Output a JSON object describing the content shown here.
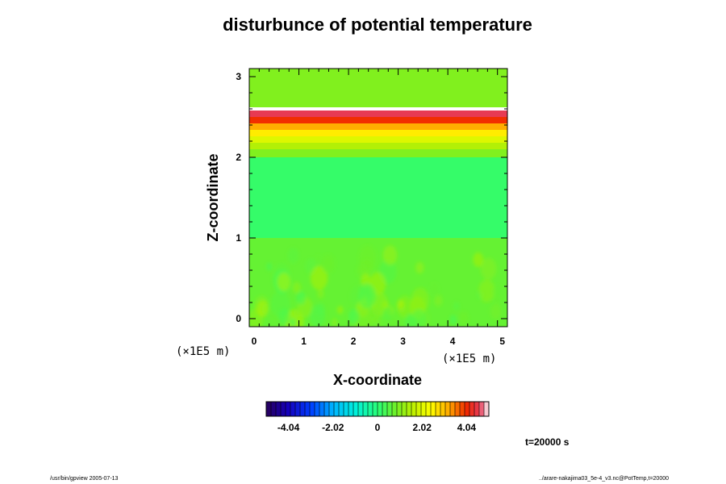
{
  "chart_data": {
    "type": "heatmap",
    "title": "disturbunce of potential temperature",
    "xlabel": "X-coordinate",
    "ylabel": "Z-coordinate",
    "x_unit": "(×1E5 m)",
    "z_unit": "(×1E5 m)",
    "xlim": [
      0,
      5.2
    ],
    "zlim": [
      -0.1,
      3.1
    ],
    "x_ticks": [
      "0",
      "1",
      "2",
      "3",
      "4",
      "5"
    ],
    "z_ticks": [
      "0",
      "1",
      "2",
      "3"
    ],
    "colorbar": {
      "range": [
        -5.05,
        5.05
      ],
      "tick_labels": [
        "-4.04",
        "-2.02",
        "0",
        "2.02",
        "4.04"
      ],
      "tick_values": [
        -4.04,
        -2.02,
        0,
        2.02,
        4.04
      ]
    },
    "layers": [
      {
        "z_from": 2.62,
        "z_to": 3.1,
        "value": 1.0
      },
      {
        "z_from": 2.58,
        "z_to": 2.62,
        "value": 5.3
      },
      {
        "z_from": 2.5,
        "z_to": 2.58,
        "value": 4.6
      },
      {
        "z_from": 2.42,
        "z_to": 2.5,
        "value": 4.0
      },
      {
        "z_from": 2.34,
        "z_to": 2.42,
        "value": 3.2
      },
      {
        "z_from": 2.26,
        "z_to": 2.34,
        "value": 2.6
      },
      {
        "z_from": 2.18,
        "z_to": 2.26,
        "value": 2.0
      },
      {
        "z_from": 2.1,
        "z_to": 2.18,
        "value": 1.5
      },
      {
        "z_from": 2.0,
        "z_to": 2.1,
        "value": 1.0
      },
      {
        "z_from": 1.0,
        "z_to": 2.0,
        "value": 0.15
      },
      {
        "z_from": -0.1,
        "z_to": 1.0,
        "value": 0.7
      }
    ],
    "time_label": "t=20000 s"
  },
  "footer": {
    "left": "/usr/bin/gpview 2005-07-13",
    "right": "../arare-nakajima03_5e-4_v3.nc@PotTemp,t=20000"
  }
}
